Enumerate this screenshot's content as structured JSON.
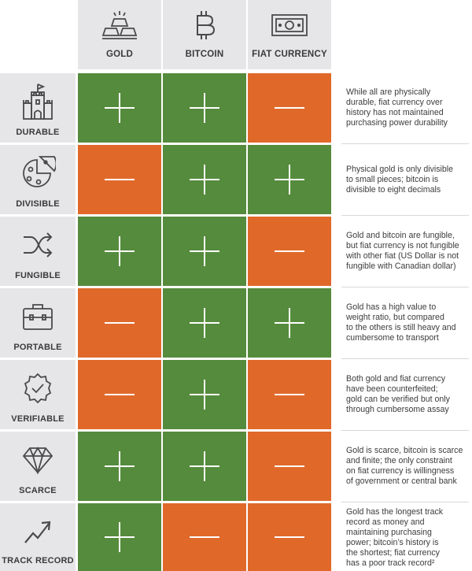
{
  "columns": [
    {
      "key": "gold",
      "label": "GOLD",
      "icon": "gold-bars-icon"
    },
    {
      "key": "bitcoin",
      "label": "BITCOIN",
      "icon": "bitcoin-icon"
    },
    {
      "key": "fiat",
      "label": "FIAT CURRENCY",
      "icon": "banknote-icon"
    }
  ],
  "rows": [
    {
      "label": "DURABLE",
      "icon": "castle-icon",
      "values": [
        "plus",
        "plus",
        "minus"
      ],
      "description": "While all are physically\ndurable, fiat currency over\nhistory has not maintained\npurchasing power durability"
    },
    {
      "label": "DIVISIBLE",
      "icon": "pie-slice-icon",
      "values": [
        "minus",
        "plus",
        "plus"
      ],
      "description": "Physical gold is only divisible\nto small pieces; bitcoin is\ndivisible to eight decimals"
    },
    {
      "label": "FUNGIBLE",
      "icon": "shuffle-icon",
      "values": [
        "plus",
        "plus",
        "minus"
      ],
      "description": "Gold and bitcoin are fungible,\nbut fiat currency is not fungible\nwith other fiat (US Dollar is not\nfungible with Canadian dollar)"
    },
    {
      "label": "PORTABLE",
      "icon": "briefcase-icon",
      "values": [
        "minus",
        "plus",
        "plus"
      ],
      "description": "Gold has a high value to\nweight ratio, but compared\nto the others is still heavy and\ncumbersome to transport"
    },
    {
      "label": "VERIFIABLE",
      "icon": "verified-badge-icon",
      "values": [
        "minus",
        "plus",
        "minus"
      ],
      "description": "Both gold and fiat currency\nhave been counterfeited;\ngold can be verified but only\nthrough cumbersome assay"
    },
    {
      "label": "SCARCE",
      "icon": "diamond-icon",
      "values": [
        "plus",
        "plus",
        "minus"
      ],
      "description": "Gold is scarce, bitcoin is scarce\nand finite; the only constraint\non fiat currency is willingness\nof government or central bank"
    },
    {
      "label": "TRACK RECORD",
      "icon": "trending-up-icon",
      "values": [
        "plus",
        "minus",
        "minus"
      ],
      "description": "Gold has the longest track\nrecord as money and\nmaintaining purchasing\npower; bitcoin’s history is\nthe shortest; fiat currency\nhas a poor track record²"
    }
  ],
  "colors": {
    "plus": "#558b3c",
    "minus": "#e0692a",
    "header": "#e6e6e9"
  }
}
